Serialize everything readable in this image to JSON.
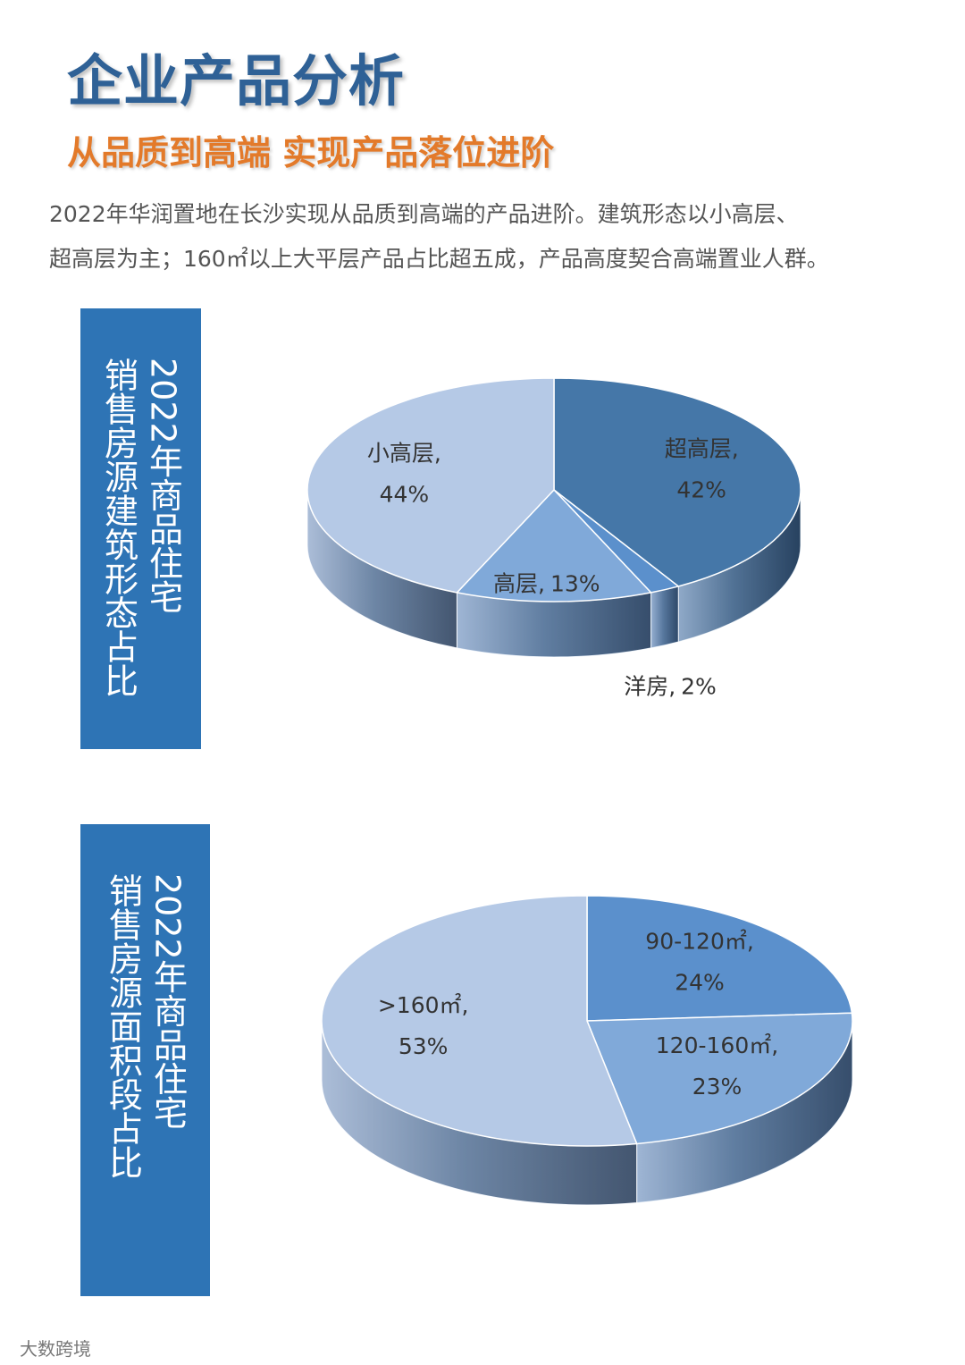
{
  "header": {
    "title": "企业产品分析",
    "subtitle": "从品质到高端 实现产品落位进阶",
    "paragraph": [
      "2022年华润置地在长沙实现从品质到高端的产品进阶。建筑形态以小高层、",
      "超高层为主；160㎡以上大平层产品占比超五成，产品高度契合高端置业人群。"
    ]
  },
  "chart_data": [
    {
      "type": "pie3d",
      "title": [
        "2022年商品住宅",
        "销售房源建筑形态占比"
      ],
      "categories": [
        "超高层,",
        "洋房,",
        "高层,",
        "小高层,"
      ],
      "values": [
        42,
        2,
        13,
        44
      ],
      "value_labels": [
        "42%",
        "2%",
        "13%",
        "44%"
      ],
      "colors": [
        "#4577a8",
        "#5b90cc",
        "#80a9d9",
        "#b5c9e6"
      ]
    },
    {
      "type": "pie3d",
      "title": [
        "2022年商品住宅",
        "销售房源面积段占比"
      ],
      "categories": [
        "90-120㎡,",
        "120-160㎡,",
        ">160㎡,"
      ],
      "values": [
        24,
        23,
        53
      ],
      "value_labels": [
        "24%",
        "23%",
        "53%"
      ],
      "colors": [
        "#5b90cc",
        "#80a9d9",
        "#b5c9e6"
      ]
    }
  ],
  "footer": {
    "source": "大数跨境"
  }
}
